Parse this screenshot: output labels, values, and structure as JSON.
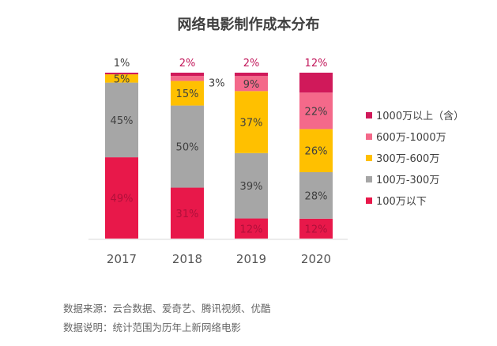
{
  "chart_data": {
    "type": "bar",
    "stacked": true,
    "title": "网络电影制作成本分布",
    "categories": [
      "2017",
      "2018",
      "2019",
      "2020"
    ],
    "series": [
      {
        "name": "100万以下",
        "color": "#e8184a",
        "values": [
          49,
          31,
          12,
          12
        ]
      },
      {
        "name": "100万-300万",
        "color": "#a6a6a6",
        "values": [
          45,
          50,
          39,
          28
        ]
      },
      {
        "name": "300万-600万",
        "color": "#ffc000",
        "values": [
          5,
          15,
          37,
          26
        ]
      },
      {
        "name": "600万-1000万",
        "color": "#f4698a",
        "values": [
          0,
          3,
          9,
          22
        ]
      },
      {
        "name": "1000万以上（含）",
        "color": "#d0195a",
        "values": [
          1,
          2,
          2,
          12
        ]
      }
    ],
    "unit": "%",
    "legend_placement": "right",
    "legend_order": [
      "1000万以上（含）",
      "600万-1000万",
      "300万-600万",
      "100万-300万",
      "100万以下"
    ],
    "top_label_colors": [
      "#404040",
      "#c2185b",
      "#c2185b",
      "#c2185b"
    ],
    "grid": false
  },
  "notes": {
    "source": "数据来源：云合数据、爱奇艺、腾讯视频、优酷",
    "description": "数据说明：统计范围为历年上新网络电影"
  }
}
